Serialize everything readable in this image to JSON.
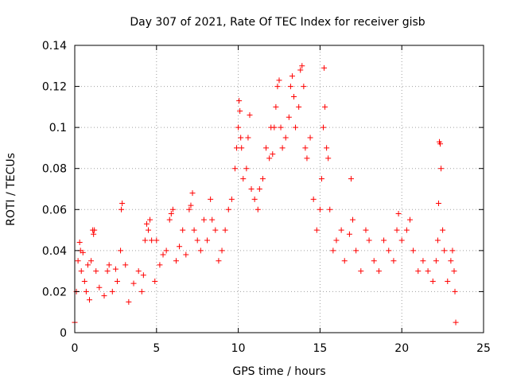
{
  "chart_data": {
    "type": "scatter",
    "title": "Day 307 of 2021, Rate Of TEC Index for receiver gisb",
    "xlabel": "GPS time / hours",
    "ylabel": "ROTI / TECUs",
    "xlim": [
      0,
      25
    ],
    "ylim": [
      0,
      0.14
    ],
    "x_ticks": [
      0,
      5,
      10,
      15,
      20,
      25
    ],
    "x_tick_labels": [
      "0",
      "5",
      "10",
      "15",
      "20",
      "25"
    ],
    "y_ticks": [
      0,
      0.02,
      0.04,
      0.06,
      0.08,
      0.1,
      0.12,
      0.14
    ],
    "y_tick_labels": [
      "0",
      "0.02",
      "0.04",
      "0.06",
      "0.08",
      "0.1",
      "0.12",
      "0.14"
    ],
    "grid": true,
    "marker": "plus",
    "color": "#ff0000",
    "data_extent_hours": [
      0,
      23.3
    ],
    "series": [
      {
        "points": [
          [
            0.0,
            0.005
          ],
          [
            0.1,
            0.02
          ],
          [
            0.2,
            0.035
          ],
          [
            0.3,
            0.044
          ],
          [
            0.35,
            0.04
          ],
          [
            0.4,
            0.03
          ],
          [
            0.5,
            0.039
          ],
          [
            0.6,
            0.025
          ],
          [
            0.7,
            0.02
          ],
          [
            0.8,
            0.033
          ],
          [
            0.9,
            0.016
          ],
          [
            1.0,
            0.035
          ],
          [
            1.1,
            0.05
          ],
          [
            1.15,
            0.048
          ],
          [
            1.2,
            0.05
          ],
          [
            1.3,
            0.03
          ],
          [
            1.5,
            0.022
          ],
          [
            1.8,
            0.018
          ],
          [
            2.0,
            0.03
          ],
          [
            2.1,
            0.033
          ],
          [
            2.3,
            0.02
          ],
          [
            2.5,
            0.031
          ],
          [
            2.6,
            0.025
          ],
          [
            2.8,
            0.04
          ],
          [
            2.85,
            0.06
          ],
          [
            2.9,
            0.063
          ],
          [
            3.1,
            0.033
          ],
          [
            3.3,
            0.015
          ],
          [
            3.6,
            0.024
          ],
          [
            3.9,
            0.03
          ],
          [
            4.1,
            0.02
          ],
          [
            4.2,
            0.028
          ],
          [
            4.3,
            0.045
          ],
          [
            4.4,
            0.053
          ],
          [
            4.5,
            0.05
          ],
          [
            4.6,
            0.055
          ],
          [
            4.7,
            0.045
          ],
          [
            4.9,
            0.025
          ],
          [
            5.0,
            0.045
          ],
          [
            5.2,
            0.033
          ],
          [
            5.4,
            0.038
          ],
          [
            5.6,
            0.04
          ],
          [
            5.8,
            0.055
          ],
          [
            5.9,
            0.058
          ],
          [
            6.0,
            0.06
          ],
          [
            6.2,
            0.035
          ],
          [
            6.4,
            0.042
          ],
          [
            6.6,
            0.05
          ],
          [
            6.8,
            0.038
          ],
          [
            7.0,
            0.06
          ],
          [
            7.1,
            0.062
          ],
          [
            7.2,
            0.068
          ],
          [
            7.3,
            0.05
          ],
          [
            7.5,
            0.045
          ],
          [
            7.7,
            0.04
          ],
          [
            7.9,
            0.055
          ],
          [
            8.1,
            0.045
          ],
          [
            8.3,
            0.065
          ],
          [
            8.4,
            0.055
          ],
          [
            8.6,
            0.05
          ],
          [
            8.8,
            0.035
          ],
          [
            9.0,
            0.04
          ],
          [
            9.2,
            0.05
          ],
          [
            9.4,
            0.06
          ],
          [
            9.6,
            0.065
          ],
          [
            9.8,
            0.08
          ],
          [
            9.9,
            0.09
          ],
          [
            10.0,
            0.1
          ],
          [
            10.05,
            0.113
          ],
          [
            10.1,
            0.108
          ],
          [
            10.15,
            0.095
          ],
          [
            10.2,
            0.09
          ],
          [
            10.3,
            0.075
          ],
          [
            10.5,
            0.08
          ],
          [
            10.6,
            0.095
          ],
          [
            10.7,
            0.106
          ],
          [
            10.8,
            0.07
          ],
          [
            11.0,
            0.065
          ],
          [
            11.2,
            0.06
          ],
          [
            11.3,
            0.07
          ],
          [
            11.5,
            0.075
          ],
          [
            11.7,
            0.09
          ],
          [
            11.9,
            0.085
          ],
          [
            12.0,
            0.1
          ],
          [
            12.1,
            0.087
          ],
          [
            12.2,
            0.1
          ],
          [
            12.3,
            0.11
          ],
          [
            12.4,
            0.12
          ],
          [
            12.5,
            0.123
          ],
          [
            12.6,
            0.1
          ],
          [
            12.7,
            0.09
          ],
          [
            12.9,
            0.095
          ],
          [
            13.1,
            0.105
          ],
          [
            13.2,
            0.12
          ],
          [
            13.3,
            0.125
          ],
          [
            13.4,
            0.115
          ],
          [
            13.5,
            0.1
          ],
          [
            13.7,
            0.11
          ],
          [
            13.8,
            0.128
          ],
          [
            13.9,
            0.13
          ],
          [
            14.0,
            0.12
          ],
          [
            14.1,
            0.09
          ],
          [
            14.2,
            0.085
          ],
          [
            14.4,
            0.095
          ],
          [
            14.6,
            0.065
          ],
          [
            14.8,
            0.05
          ],
          [
            15.0,
            0.06
          ],
          [
            15.1,
            0.075
          ],
          [
            15.2,
            0.1
          ],
          [
            15.25,
            0.129
          ],
          [
            15.3,
            0.11
          ],
          [
            15.4,
            0.09
          ],
          [
            15.5,
            0.085
          ],
          [
            15.6,
            0.06
          ],
          [
            15.8,
            0.04
          ],
          [
            16.0,
            0.045
          ],
          [
            16.3,
            0.05
          ],
          [
            16.5,
            0.035
          ],
          [
            16.8,
            0.048
          ],
          [
            16.9,
            0.075
          ],
          [
            17.0,
            0.055
          ],
          [
            17.2,
            0.04
          ],
          [
            17.5,
            0.03
          ],
          [
            17.8,
            0.05
          ],
          [
            18.0,
            0.045
          ],
          [
            18.3,
            0.035
          ],
          [
            18.6,
            0.03
          ],
          [
            18.9,
            0.045
          ],
          [
            19.2,
            0.04
          ],
          [
            19.5,
            0.035
          ],
          [
            19.7,
            0.05
          ],
          [
            19.8,
            0.058
          ],
          [
            20.0,
            0.045
          ],
          [
            20.3,
            0.05
          ],
          [
            20.5,
            0.055
          ],
          [
            20.7,
            0.04
          ],
          [
            21.0,
            0.03
          ],
          [
            21.3,
            0.035
          ],
          [
            21.6,
            0.03
          ],
          [
            21.9,
            0.025
          ],
          [
            22.1,
            0.035
          ],
          [
            22.2,
            0.045
          ],
          [
            22.25,
            0.063
          ],
          [
            22.3,
            0.093
          ],
          [
            22.35,
            0.092
          ],
          [
            22.4,
            0.08
          ],
          [
            22.5,
            0.05
          ],
          [
            22.6,
            0.04
          ],
          [
            22.8,
            0.025
          ],
          [
            23.0,
            0.035
          ],
          [
            23.1,
            0.04
          ],
          [
            23.2,
            0.03
          ],
          [
            23.25,
            0.02
          ],
          [
            23.3,
            0.005
          ]
        ]
      }
    ]
  }
}
